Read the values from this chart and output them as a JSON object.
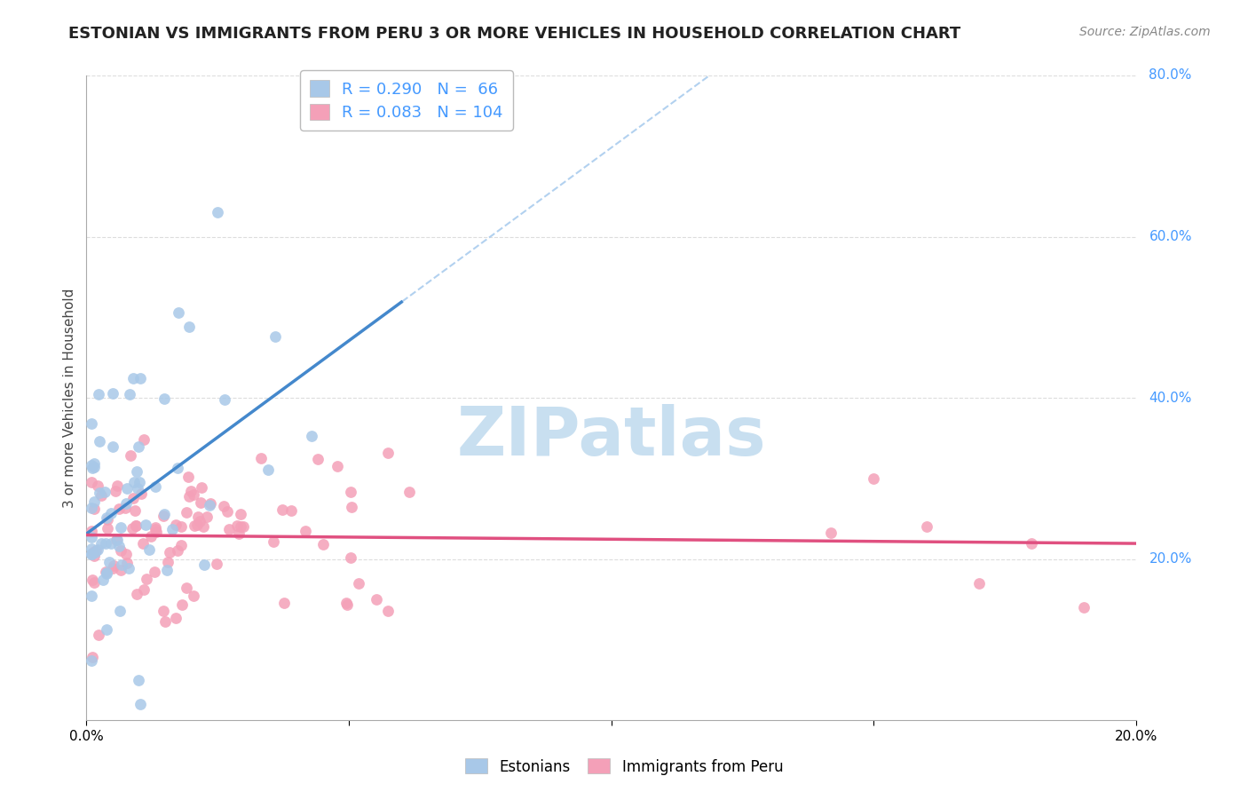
{
  "title": "ESTONIAN VS IMMIGRANTS FROM PERU 3 OR MORE VEHICLES IN HOUSEHOLD CORRELATION CHART",
  "source": "Source: ZipAtlas.com",
  "ylabel_label": "3 or more Vehicles in Household",
  "legend_label1": "Estonians",
  "legend_label2": "Immigrants from Peru",
  "R1": 0.29,
  "N1": 66,
  "R2": 0.083,
  "N2": 104,
  "color_blue": "#a8c8e8",
  "color_pink": "#f4a0b8",
  "color_blue_line": "#4488cc",
  "color_pink_line": "#e05080",
  "color_blue_dashed": "#aaccee",
  "color_right_axis": "#4499ff",
  "xmin": 0.0,
  "xmax": 0.2,
  "ymin": 0.0,
  "ymax": 0.8,
  "watermark_text": "ZIPatlas",
  "watermark_color": "#c8dff0",
  "background_color": "#ffffff",
  "grid_color": "#dddddd",
  "title_color": "#222222",
  "source_color": "#888888"
}
